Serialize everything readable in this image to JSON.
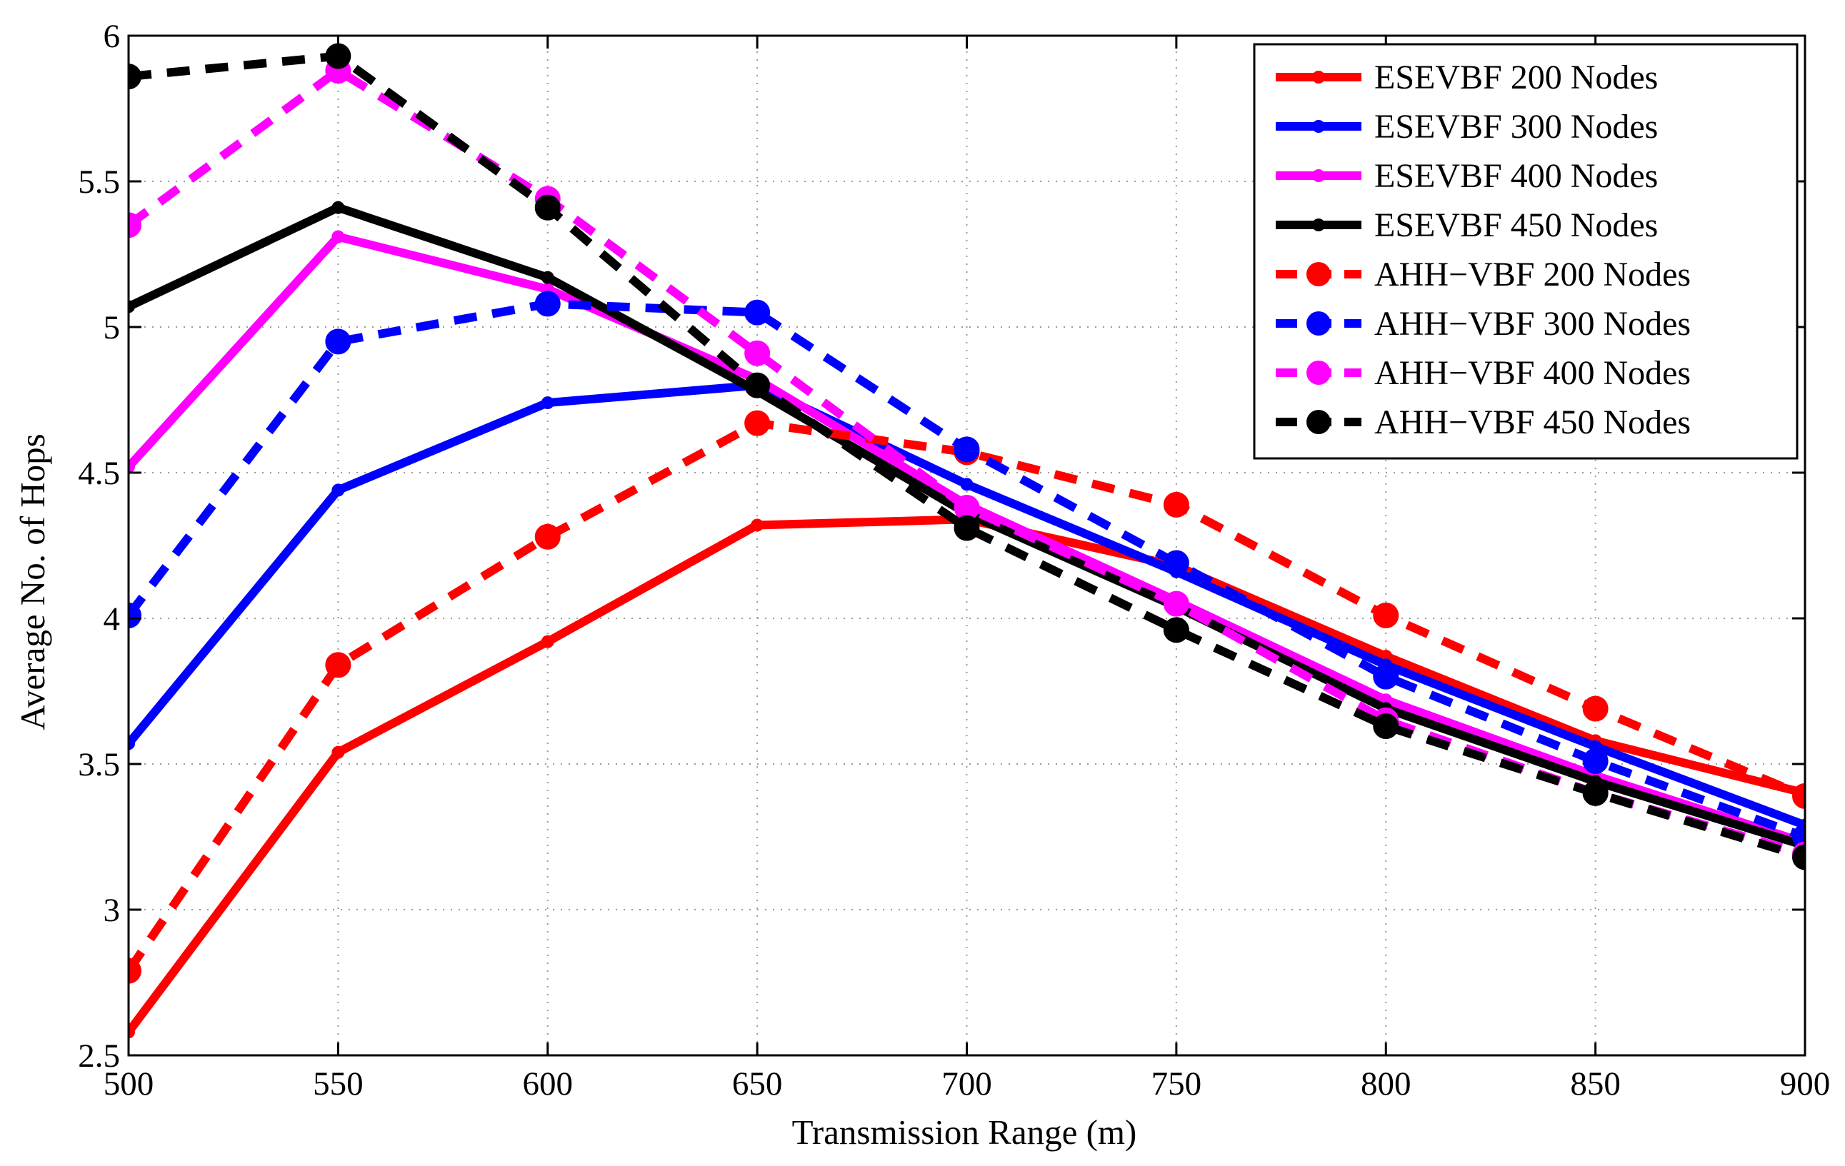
{
  "chart_data": {
    "type": "line",
    "title": "",
    "xlabel": "Transmission Range (m)",
    "ylabel": "Average No. of Hops",
    "xlim": [
      500,
      900
    ],
    "ylim": [
      2.5,
      6
    ],
    "x": [
      500,
      550,
      600,
      650,
      700,
      750,
      800,
      850,
      900
    ],
    "xticks": [
      "500",
      "550",
      "600",
      "650",
      "700",
      "750",
      "800",
      "850",
      "900"
    ],
    "yticks": [
      "2.5",
      "3",
      "3.5",
      "4",
      "4.5",
      "5",
      "5.5",
      "6"
    ],
    "grid": true,
    "legend_position": "top-right",
    "series": [
      {
        "name": "ESEVBF 200 Nodes",
        "color": "#ff0000",
        "style": "solid",
        "marker": "dot",
        "values": [
          2.58,
          3.54,
          3.92,
          4.32,
          4.34,
          4.18,
          3.87,
          3.58,
          3.4
        ]
      },
      {
        "name": "ESEVBF 300 Nodes",
        "color": "#0000ff",
        "style": "solid",
        "marker": "dot",
        "values": [
          3.57,
          4.44,
          4.74,
          4.8,
          4.46,
          4.16,
          3.84,
          3.56,
          3.29
        ]
      },
      {
        "name": "ESEVBF 400 Nodes",
        "color": "#ff00ff",
        "style": "solid",
        "marker": "dot",
        "values": [
          4.52,
          5.31,
          5.13,
          4.82,
          4.39,
          4.06,
          3.72,
          3.46,
          3.23
        ]
      },
      {
        "name": "ESEVBF 450 Nodes",
        "color": "#000000",
        "style": "solid",
        "marker": "dot",
        "values": [
          5.07,
          5.41,
          5.17,
          4.78,
          4.36,
          4.04,
          3.69,
          3.44,
          3.22
        ]
      },
      {
        "name": "AHH−VBF 200 Nodes",
        "color": "#ff0000",
        "style": "dashed",
        "marker": "circle",
        "values": [
          2.79,
          3.84,
          4.28,
          4.67,
          4.57,
          4.39,
          4.01,
          3.69,
          3.39
        ]
      },
      {
        "name": "AHH−VBF 300 Nodes",
        "color": "#0000ff",
        "style": "dashed",
        "marker": "circle",
        "values": [
          4.01,
          4.95,
          5.08,
          5.05,
          4.58,
          4.19,
          3.8,
          3.51,
          3.25
        ]
      },
      {
        "name": "AHH−VBF 400 Nodes",
        "color": "#ff00ff",
        "style": "dashed",
        "marker": "circle",
        "values": [
          5.35,
          5.88,
          5.44,
          4.91,
          4.38,
          4.05,
          3.65,
          3.4,
          3.19
        ]
      },
      {
        "name": "AHH−VBF 450 Nodes",
        "color": "#000000",
        "style": "dashed",
        "marker": "circle",
        "values": [
          5.86,
          5.93,
          5.41,
          4.8,
          4.31,
          3.96,
          3.63,
          3.4,
          3.18
        ]
      }
    ]
  }
}
